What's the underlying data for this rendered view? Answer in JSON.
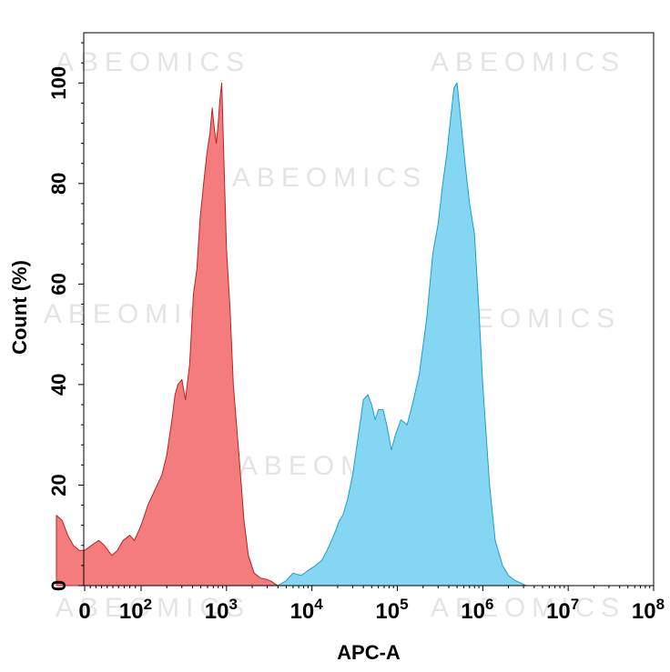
{
  "watermark": "ABEOMICS",
  "chart_data": {
    "type": "area",
    "title": "",
    "xlabel": "APC-A",
    "ylabel": "Count (%)",
    "x_scale": "biexponential",
    "xlim": [
      -200,
      100000000
    ],
    "ylim": [
      0,
      110
    ],
    "grid": false,
    "x_ticks": [
      {
        "value": 0,
        "base": "0",
        "exp": ""
      },
      {
        "value": 100,
        "base": "10",
        "exp": "2"
      },
      {
        "value": 1000,
        "base": "10",
        "exp": "3"
      },
      {
        "value": 10000,
        "base": "10",
        "exp": "4"
      },
      {
        "value": 100000,
        "base": "10",
        "exp": "5"
      },
      {
        "value": 1000000,
        "base": "10",
        "exp": "6"
      },
      {
        "value": 10000000,
        "base": "10",
        "exp": "7"
      },
      {
        "value": 100000000,
        "base": "10",
        "exp": "8"
      }
    ],
    "y_ticks": [
      0,
      20,
      40,
      60,
      80,
      100
    ],
    "series": [
      {
        "color": "#f57c7c",
        "stroke": "#b52525",
        "points": [
          [
            -50,
            14
          ],
          [
            -40,
            13
          ],
          [
            -30,
            10
          ],
          [
            -20,
            8
          ],
          [
            -10,
            7
          ],
          [
            0,
            7
          ],
          [
            12,
            8
          ],
          [
            25,
            9
          ],
          [
            35,
            8
          ],
          [
            48,
            6
          ],
          [
            58,
            7
          ],
          [
            68,
            9
          ],
          [
            80,
            10
          ],
          [
            88,
            9
          ],
          [
            100,
            12
          ],
          [
            120,
            16
          ],
          [
            145,
            19
          ],
          [
            175,
            22
          ],
          [
            200,
            26
          ],
          [
            230,
            33
          ],
          [
            250,
            38
          ],
          [
            270,
            40
          ],
          [
            300,
            41
          ],
          [
            330,
            37
          ],
          [
            370,
            44
          ],
          [
            410,
            58
          ],
          [
            450,
            63
          ],
          [
            490,
            73
          ],
          [
            540,
            80
          ],
          [
            590,
            86
          ],
          [
            640,
            90
          ],
          [
            680,
            95
          ],
          [
            720,
            91
          ],
          [
            760,
            88
          ],
          [
            800,
            92
          ],
          [
            840,
            97
          ],
          [
            880,
            100
          ],
          [
            900,
            94
          ],
          [
            950,
            80
          ],
          [
            1000,
            67
          ],
          [
            1100,
            55
          ],
          [
            1200,
            40
          ],
          [
            1400,
            26
          ],
          [
            1600,
            13
          ],
          [
            1800,
            6
          ],
          [
            2100,
            2.5
          ],
          [
            2500,
            1.5
          ],
          [
            3000,
            1.2
          ],
          [
            3400,
            0.8
          ],
          [
            3700,
            0.3
          ],
          [
            4000,
            0
          ]
        ]
      },
      {
        "color": "#84d6f3",
        "stroke": "#1f9ec8",
        "points": [
          [
            4000,
            0
          ],
          [
            5000,
            1
          ],
          [
            6000,
            2.5
          ],
          [
            7500,
            2
          ],
          [
            9000,
            3
          ],
          [
            11000,
            4
          ],
          [
            13000,
            5
          ],
          [
            15000,
            7
          ],
          [
            17000,
            9
          ],
          [
            19000,
            11
          ],
          [
            21000,
            13
          ],
          [
            23000,
            14
          ],
          [
            26000,
            17
          ],
          [
            30000,
            22
          ],
          [
            35000,
            30
          ],
          [
            40000,
            37
          ],
          [
            45000,
            38
          ],
          [
            50000,
            36
          ],
          [
            55000,
            33
          ],
          [
            60000,
            35
          ],
          [
            68000,
            35
          ],
          [
            75000,
            32
          ],
          [
            85000,
            27
          ],
          [
            95000,
            30
          ],
          [
            110000,
            33
          ],
          [
            130000,
            32
          ],
          [
            150000,
            36
          ],
          [
            180000,
            42
          ],
          [
            220000,
            53
          ],
          [
            260000,
            66
          ],
          [
            300000,
            72
          ],
          [
            340000,
            80
          ],
          [
            380000,
            86
          ],
          [
            420000,
            93
          ],
          [
            460000,
            99
          ],
          [
            500000,
            100
          ],
          [
            550000,
            93
          ],
          [
            620000,
            84
          ],
          [
            700000,
            76
          ],
          [
            800000,
            70
          ],
          [
            900000,
            55
          ],
          [
            1000000,
            40
          ],
          [
            1200000,
            20
          ],
          [
            1400000,
            9
          ],
          [
            1700000,
            4
          ],
          [
            2000000,
            2
          ],
          [
            2400000,
            1
          ],
          [
            2800000,
            0.5
          ],
          [
            3200000,
            0
          ]
        ]
      }
    ]
  }
}
